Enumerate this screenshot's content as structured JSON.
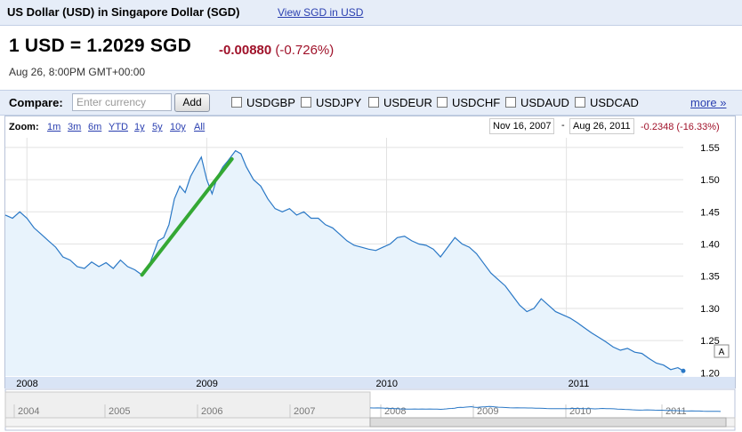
{
  "header": {
    "title": "US Dollar (USD) in Singapore Dollar (SGD)",
    "inverse_link": "View SGD in USD"
  },
  "quote": {
    "line": "1 USD = 1.2029 SGD",
    "change": "-0.00880",
    "change_pct": "(-0.726%)",
    "timestamp": "Aug 26, 8:00PM GMT+00:00"
  },
  "compare": {
    "label": "Compare:",
    "placeholder": "Enter currency",
    "add_label": "Add",
    "pairs": [
      "USDGBP",
      "USDJPY",
      "USDEUR",
      "USDCHF",
      "USDAUD",
      "USDCAD"
    ],
    "more_label": "more »"
  },
  "zoom": {
    "label": "Zoom:",
    "options": [
      "1m",
      "3m",
      "6m",
      "YTD",
      "1y",
      "5y",
      "10y",
      "All"
    ]
  },
  "range": {
    "start": "Nov 16, 2007",
    "end": "Aug 26, 2011",
    "dash": "-",
    "change": "-0.2348 (-16.33%)"
  },
  "colors": {
    "line": "#2a78c6",
    "fill": "#e8f3fc",
    "trend": "#34a834",
    "negative": "#a0122a",
    "link": "#2a3fb0"
  },
  "chart_data": {
    "type": "area",
    "title": "",
    "xlabel": "",
    "ylabel": "",
    "ylim": [
      1.195,
      1.565
    ],
    "y_ticks": [
      "1.55",
      "1.50",
      "1.45",
      "1.40",
      "1.35",
      "1.30",
      "1.25",
      "1.20"
    ],
    "x_ticks": [
      "2008",
      "2009",
      "2010",
      "2011"
    ],
    "series": [
      {
        "values": [
          [
            2007.88,
            1.445
          ],
          [
            2007.92,
            1.44
          ],
          [
            2007.96,
            1.45
          ],
          [
            2008.0,
            1.44
          ],
          [
            2008.04,
            1.425
          ],
          [
            2008.08,
            1.415
          ],
          [
            2008.12,
            1.405
          ],
          [
            2008.16,
            1.395
          ],
          [
            2008.2,
            1.38
          ],
          [
            2008.24,
            1.375
          ],
          [
            2008.28,
            1.365
          ],
          [
            2008.32,
            1.362
          ],
          [
            2008.36,
            1.372
          ],
          [
            2008.4,
            1.365
          ],
          [
            2008.44,
            1.371
          ],
          [
            2008.48,
            1.362
          ],
          [
            2008.52,
            1.375
          ],
          [
            2008.56,
            1.365
          ],
          [
            2008.6,
            1.36
          ],
          [
            2008.64,
            1.352
          ],
          [
            2008.67,
            1.36
          ],
          [
            2008.7,
            1.382
          ],
          [
            2008.73,
            1.405
          ],
          [
            2008.76,
            1.41
          ],
          [
            2008.79,
            1.43
          ],
          [
            2008.82,
            1.47
          ],
          [
            2008.85,
            1.49
          ],
          [
            2008.88,
            1.48
          ],
          [
            2008.91,
            1.505
          ],
          [
            2008.94,
            1.52
          ],
          [
            2008.97,
            1.535
          ],
          [
            2009.0,
            1.5
          ],
          [
            2009.03,
            1.478
          ],
          [
            2009.06,
            1.505
          ],
          [
            2009.09,
            1.52
          ],
          [
            2009.12,
            1.53
          ],
          [
            2009.16,
            1.545
          ],
          [
            2009.19,
            1.54
          ],
          [
            2009.22,
            1.52
          ],
          [
            2009.26,
            1.5
          ],
          [
            2009.3,
            1.49
          ],
          [
            2009.34,
            1.47
          ],
          [
            2009.38,
            1.455
          ],
          [
            2009.42,
            1.45
          ],
          [
            2009.46,
            1.455
          ],
          [
            2009.5,
            1.445
          ],
          [
            2009.54,
            1.45
          ],
          [
            2009.58,
            1.44
          ],
          [
            2009.62,
            1.44
          ],
          [
            2009.66,
            1.43
          ],
          [
            2009.7,
            1.425
          ],
          [
            2009.74,
            1.415
          ],
          [
            2009.78,
            1.405
          ],
          [
            2009.82,
            1.398
          ],
          [
            2009.86,
            1.395
          ],
          [
            2009.9,
            1.392
          ],
          [
            2009.94,
            1.39
          ],
          [
            2009.98,
            1.395
          ],
          [
            2010.02,
            1.4
          ],
          [
            2010.06,
            1.41
          ],
          [
            2010.1,
            1.412
          ],
          [
            2010.14,
            1.405
          ],
          [
            2010.18,
            1.4
          ],
          [
            2010.22,
            1.398
          ],
          [
            2010.26,
            1.392
          ],
          [
            2010.3,
            1.38
          ],
          [
            2010.34,
            1.395
          ],
          [
            2010.38,
            1.41
          ],
          [
            2010.42,
            1.4
          ],
          [
            2010.46,
            1.395
          ],
          [
            2010.5,
            1.385
          ],
          [
            2010.54,
            1.37
          ],
          [
            2010.58,
            1.355
          ],
          [
            2010.62,
            1.345
          ],
          [
            2010.66,
            1.335
          ],
          [
            2010.7,
            1.32
          ],
          [
            2010.74,
            1.305
          ],
          [
            2010.78,
            1.295
          ],
          [
            2010.82,
            1.3
          ],
          [
            2010.86,
            1.315
          ],
          [
            2010.9,
            1.305
          ],
          [
            2010.94,
            1.295
          ],
          [
            2010.98,
            1.29
          ],
          [
            2011.02,
            1.285
          ],
          [
            2011.06,
            1.278
          ],
          [
            2011.1,
            1.27
          ],
          [
            2011.14,
            1.262
          ],
          [
            2011.18,
            1.255
          ],
          [
            2011.22,
            1.248
          ],
          [
            2011.26,
            1.24
          ],
          [
            2011.3,
            1.235
          ],
          [
            2011.34,
            1.238
          ],
          [
            2011.38,
            1.232
          ],
          [
            2011.42,
            1.23
          ],
          [
            2011.46,
            1.222
          ],
          [
            2011.5,
            1.215
          ],
          [
            2011.54,
            1.212
          ],
          [
            2011.58,
            1.205
          ],
          [
            2011.62,
            1.208
          ],
          [
            2011.65,
            1.203
          ]
        ]
      }
    ],
    "annotation": {
      "type": "trend-line",
      "from": [
        2008.64,
        1.352
      ],
      "to": [
        2009.14,
        1.532
      ]
    },
    "navigator_ticks": [
      "2004",
      "2005",
      "2006",
      "2007",
      "2008",
      "2009",
      "2010",
      "2011"
    ],
    "grid": true,
    "legend": "none"
  }
}
